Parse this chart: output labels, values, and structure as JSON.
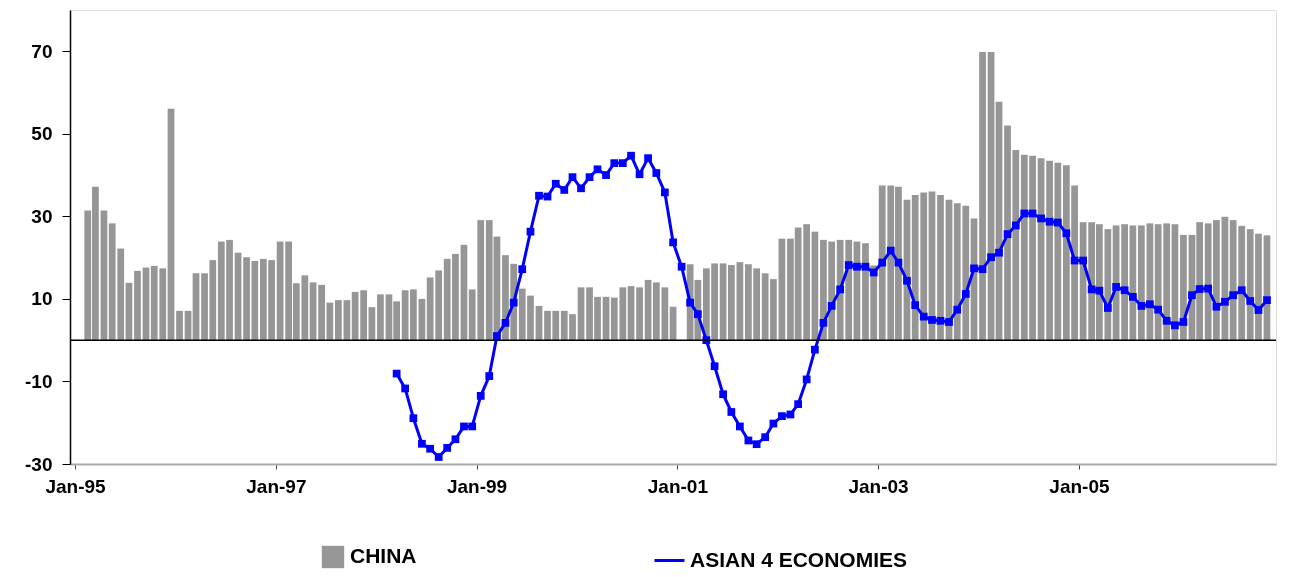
{
  "chart_data": {
    "type": "bar",
    "xlim": [
      "1995-01",
      "2006-12"
    ],
    "xticks": [
      {
        "value": "1995-01",
        "label": "Jan-95"
      },
      {
        "value": "1997-01",
        "label": "Jan-97"
      },
      {
        "value": "1999-01",
        "label": "Jan-99"
      },
      {
        "value": "2001-01",
        "label": "Jan-01"
      },
      {
        "value": "2003-01",
        "label": "Jan-03"
      },
      {
        "value": "2005-01",
        "label": "Jan-05"
      }
    ],
    "ylim": [
      -30,
      80
    ],
    "yticks": [
      -30,
      -10,
      10,
      30,
      50,
      70
    ],
    "grid": false,
    "legend": "bottom",
    "ref_lines": [
      {
        "axis": "y",
        "value": 0,
        "color": "#000000"
      }
    ],
    "series": [
      {
        "name": "CHINA",
        "color": "#969696",
        "x": [
          "1995-02",
          "1995-03",
          "1995-04",
          "1995-05",
          "1995-06",
          "1995-07",
          "1995-08",
          "1995-09",
          "1995-10",
          "1995-11",
          "1995-12",
          "1996-01",
          "1996-02",
          "1996-03",
          "1996-04",
          "1996-05",
          "1996-06",
          "1996-07",
          "1996-08",
          "1996-09",
          "1996-10",
          "1996-11",
          "1996-12",
          "1997-01",
          "1997-02",
          "1997-03",
          "1997-04",
          "1997-05",
          "1997-06",
          "1997-07",
          "1997-08",
          "1997-09",
          "1997-10",
          "1997-11",
          "1997-12",
          "1998-01",
          "1998-02",
          "1998-03",
          "1998-04",
          "1998-05",
          "1998-06",
          "1998-07",
          "1998-08",
          "1998-09",
          "1998-10",
          "1998-11",
          "1998-12",
          "1999-01",
          "1999-02",
          "1999-03",
          "1999-04",
          "1999-05",
          "1999-06",
          "1999-07",
          "1999-08",
          "1999-09",
          "1999-10",
          "1999-11",
          "1999-12",
          "2000-01",
          "2000-02",
          "2000-03",
          "2000-04",
          "2000-05",
          "2000-06",
          "2000-07",
          "2000-08",
          "2000-09",
          "2000-10",
          "2000-11",
          "2000-12",
          "2001-01",
          "2001-02",
          "2001-03",
          "2001-04",
          "2001-05",
          "2001-06",
          "2001-07",
          "2001-08",
          "2001-09",
          "2001-10",
          "2001-11",
          "2001-12",
          "2002-01",
          "2002-02",
          "2002-03",
          "2002-04",
          "2002-05",
          "2002-06",
          "2002-07",
          "2002-08",
          "2002-09",
          "2002-10",
          "2002-11",
          "2002-12",
          "2003-01",
          "2003-02",
          "2003-03",
          "2003-04",
          "2003-05",
          "2003-06",
          "2003-07",
          "2003-08",
          "2003-09",
          "2003-10",
          "2003-11",
          "2003-12",
          "2004-01",
          "2004-02",
          "2004-03",
          "2004-04",
          "2004-05",
          "2004-06",
          "2004-07",
          "2004-08",
          "2004-09",
          "2004-10",
          "2004-11",
          "2004-12",
          "2005-01",
          "2005-02",
          "2005-03",
          "2005-04",
          "2005-05",
          "2005-06",
          "2005-07",
          "2005-08",
          "2005-09",
          "2005-10",
          "2005-11",
          "2005-12",
          "2006-01",
          "2006-02",
          "2006-03",
          "2006-04",
          "2006-05",
          "2006-06",
          "2006-07",
          "2006-08",
          "2006-09",
          "2006-10",
          "2006-11"
        ],
        "values": [
          31.4,
          37.2,
          31.4,
          28.3,
          22.2,
          13.9,
          16.8,
          17.6,
          18.0,
          17.4,
          56.1,
          7.1,
          7.1,
          16.2,
          16.2,
          19.4,
          23.9,
          24.3,
          21.2,
          20.1,
          19.2,
          19.7,
          19.4,
          23.9,
          23.9,
          13.8,
          15.7,
          14.0,
          13.4,
          9.1,
          9.7,
          9.7,
          11.7,
          12.1,
          8.0,
          11.1,
          11.1,
          9.4,
          12.1,
          12.3,
          10.0,
          15.2,
          16.9,
          19.7,
          20.9,
          23.1,
          12.3,
          29.1,
          29.1,
          25.1,
          20.6,
          18.5,
          12.5,
          10.8,
          8.3,
          7.1,
          7.1,
          7.1,
          6.3,
          12.8,
          12.8,
          10.5,
          10.5,
          10.3,
          12.8,
          13.1,
          12.8,
          14.6,
          14.0,
          12.8,
          8.1,
          null,
          18.4,
          14.6,
          17.4,
          18.6,
          18.6,
          18.2,
          18.9,
          18.4,
          17.4,
          16.2,
          14.8,
          24.6,
          24.6,
          27.3,
          28.1,
          26.3,
          24.3,
          23.9,
          24.3,
          24.3,
          23.9,
          23.5,
          18.1,
          37.5,
          37.5,
          37.2,
          34.0,
          35.2,
          35.8,
          36.0,
          35.2,
          34.0,
          33.2,
          32.6,
          29.5,
          69.8,
          69.8,
          57.8,
          52.0,
          46.1,
          44.9,
          44.7,
          44.1,
          43.5,
          43.0,
          42.4,
          37.5,
          28.6,
          28.6,
          28.1,
          26.9,
          27.8,
          28.1,
          27.8,
          27.8,
          28.3,
          28.1,
          28.3,
          28.1,
          25.5,
          25.5,
          28.6,
          28.3,
          29.1,
          29.9,
          29.1,
          27.7,
          26.9,
          25.8,
          25.4
        ]
      },
      {
        "name": "ASIAN 4 ECONOMIES",
        "type": "line",
        "color": "#0000ff",
        "marker": "square",
        "line_style": "solid",
        "x": [
          "1998-03",
          "1998-04",
          "1998-05",
          "1998-06",
          "1998-07",
          "1998-08",
          "1998-09",
          "1998-10",
          "1998-11",
          "1998-12",
          "1999-01",
          "1999-02",
          "1999-03",
          "1999-04",
          "1999-05",
          "1999-06",
          "1999-07",
          "1999-08",
          "1999-09",
          "1999-10",
          "1999-11",
          "1999-12",
          "2000-01",
          "2000-02",
          "2000-03",
          "2000-04",
          "2000-05",
          "2000-06",
          "2000-07",
          "2000-08",
          "2000-09",
          "2000-10",
          "2000-11",
          "2000-12",
          "2001-01",
          "2001-02",
          "2001-03",
          "2001-04",
          "2001-05",
          "2001-06",
          "2001-07",
          "2001-08",
          "2001-09",
          "2001-10",
          "2001-11",
          "2001-12",
          "2002-01",
          "2002-02",
          "2002-03",
          "2002-04",
          "2002-05",
          "2002-06",
          "2002-07",
          "2002-08",
          "2002-09",
          "2002-10",
          "2002-11",
          "2002-12",
          "2003-01",
          "2003-02",
          "2003-03",
          "2003-04",
          "2003-05",
          "2003-06",
          "2003-07",
          "2003-08",
          "2003-09",
          "2003-10",
          "2003-11",
          "2003-12",
          "2004-01",
          "2004-02",
          "2004-03",
          "2004-04",
          "2004-05",
          "2004-06",
          "2004-07",
          "2004-08",
          "2004-09",
          "2004-10",
          "2004-11",
          "2004-12",
          "2005-01",
          "2005-02",
          "2005-03",
          "2005-04",
          "2005-05",
          "2005-06",
          "2005-07",
          "2005-08",
          "2005-09",
          "2005-10",
          "2005-11",
          "2005-12",
          "2006-01",
          "2006-02",
          "2006-03",
          "2006-04",
          "2006-05",
          "2006-06",
          "2006-07",
          "2006-08",
          "2006-09",
          "2006-10",
          "2006-11"
        ],
        "values": [
          -8.1,
          -11.7,
          -18.9,
          -25.1,
          -26.3,
          -28.3,
          -26.1,
          -24.0,
          -20.9,
          -20.9,
          -13.5,
          -8.7,
          1.0,
          4.2,
          9.1,
          17.2,
          26.3,
          35.0,
          34.8,
          37.9,
          36.4,
          39.5,
          36.8,
          39.5,
          41.4,
          40.0,
          42.9,
          42.9,
          44.7,
          40.2,
          44.1,
          40.5,
          35.8,
          23.7,
          17.8,
          9.1,
          6.3,
          0.0,
          -6.3,
          -13.1,
          -17.4,
          -20.9,
          -24.3,
          -25.2,
          -23.5,
          -20.2,
          -18.4,
          -18.0,
          -15.5,
          -9.5,
          -2.3,
          4.2,
          8.3,
          12.3,
          18.2,
          17.8,
          17.8,
          16.4,
          18.8,
          21.7,
          18.8,
          14.4,
          8.5,
          5.7,
          4.9,
          4.7,
          4.4,
          7.4,
          11.2,
          17.4,
          17.2,
          20.1,
          21.2,
          25.7,
          27.8,
          30.7,
          30.7,
          29.5,
          28.7,
          28.5,
          25.9,
          19.3,
          19.3,
          12.3,
          12.0,
          7.8,
          12.9,
          12.1,
          10.5,
          8.3,
          8.7,
          7.4,
          4.7,
          3.6,
          4.4,
          10.9,
          12.4,
          12.5,
          8.1,
          9.3,
          10.9,
          12.1,
          9.5,
          7.3,
          9.7
        ]
      }
    ]
  }
}
